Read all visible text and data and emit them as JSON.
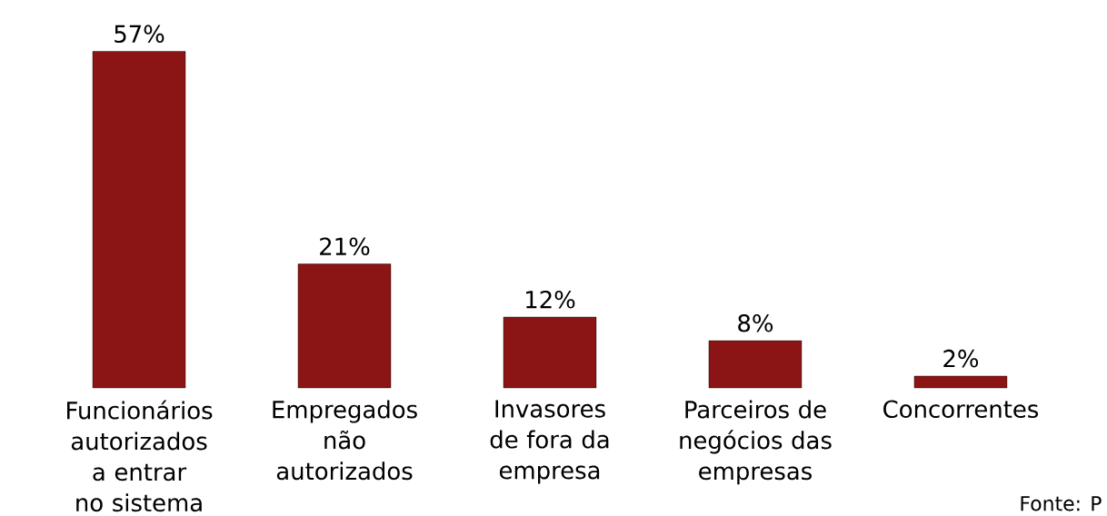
{
  "chart_data": {
    "type": "bar",
    "categories": [
      "Funcionários autorizados a entrar no sistema",
      "Empregados não autorizados",
      "Invasores de fora da empresa",
      "Parceiros de negócios das empresas",
      "Concorrentes"
    ],
    "values": [
      57,
      21,
      12,
      8,
      2
    ],
    "value_labels": [
      "57%",
      "21%",
      "12%",
      "8%",
      "2%"
    ],
    "color": "#8b1414",
    "annotations": [
      "Fonte: P"
    ]
  }
}
